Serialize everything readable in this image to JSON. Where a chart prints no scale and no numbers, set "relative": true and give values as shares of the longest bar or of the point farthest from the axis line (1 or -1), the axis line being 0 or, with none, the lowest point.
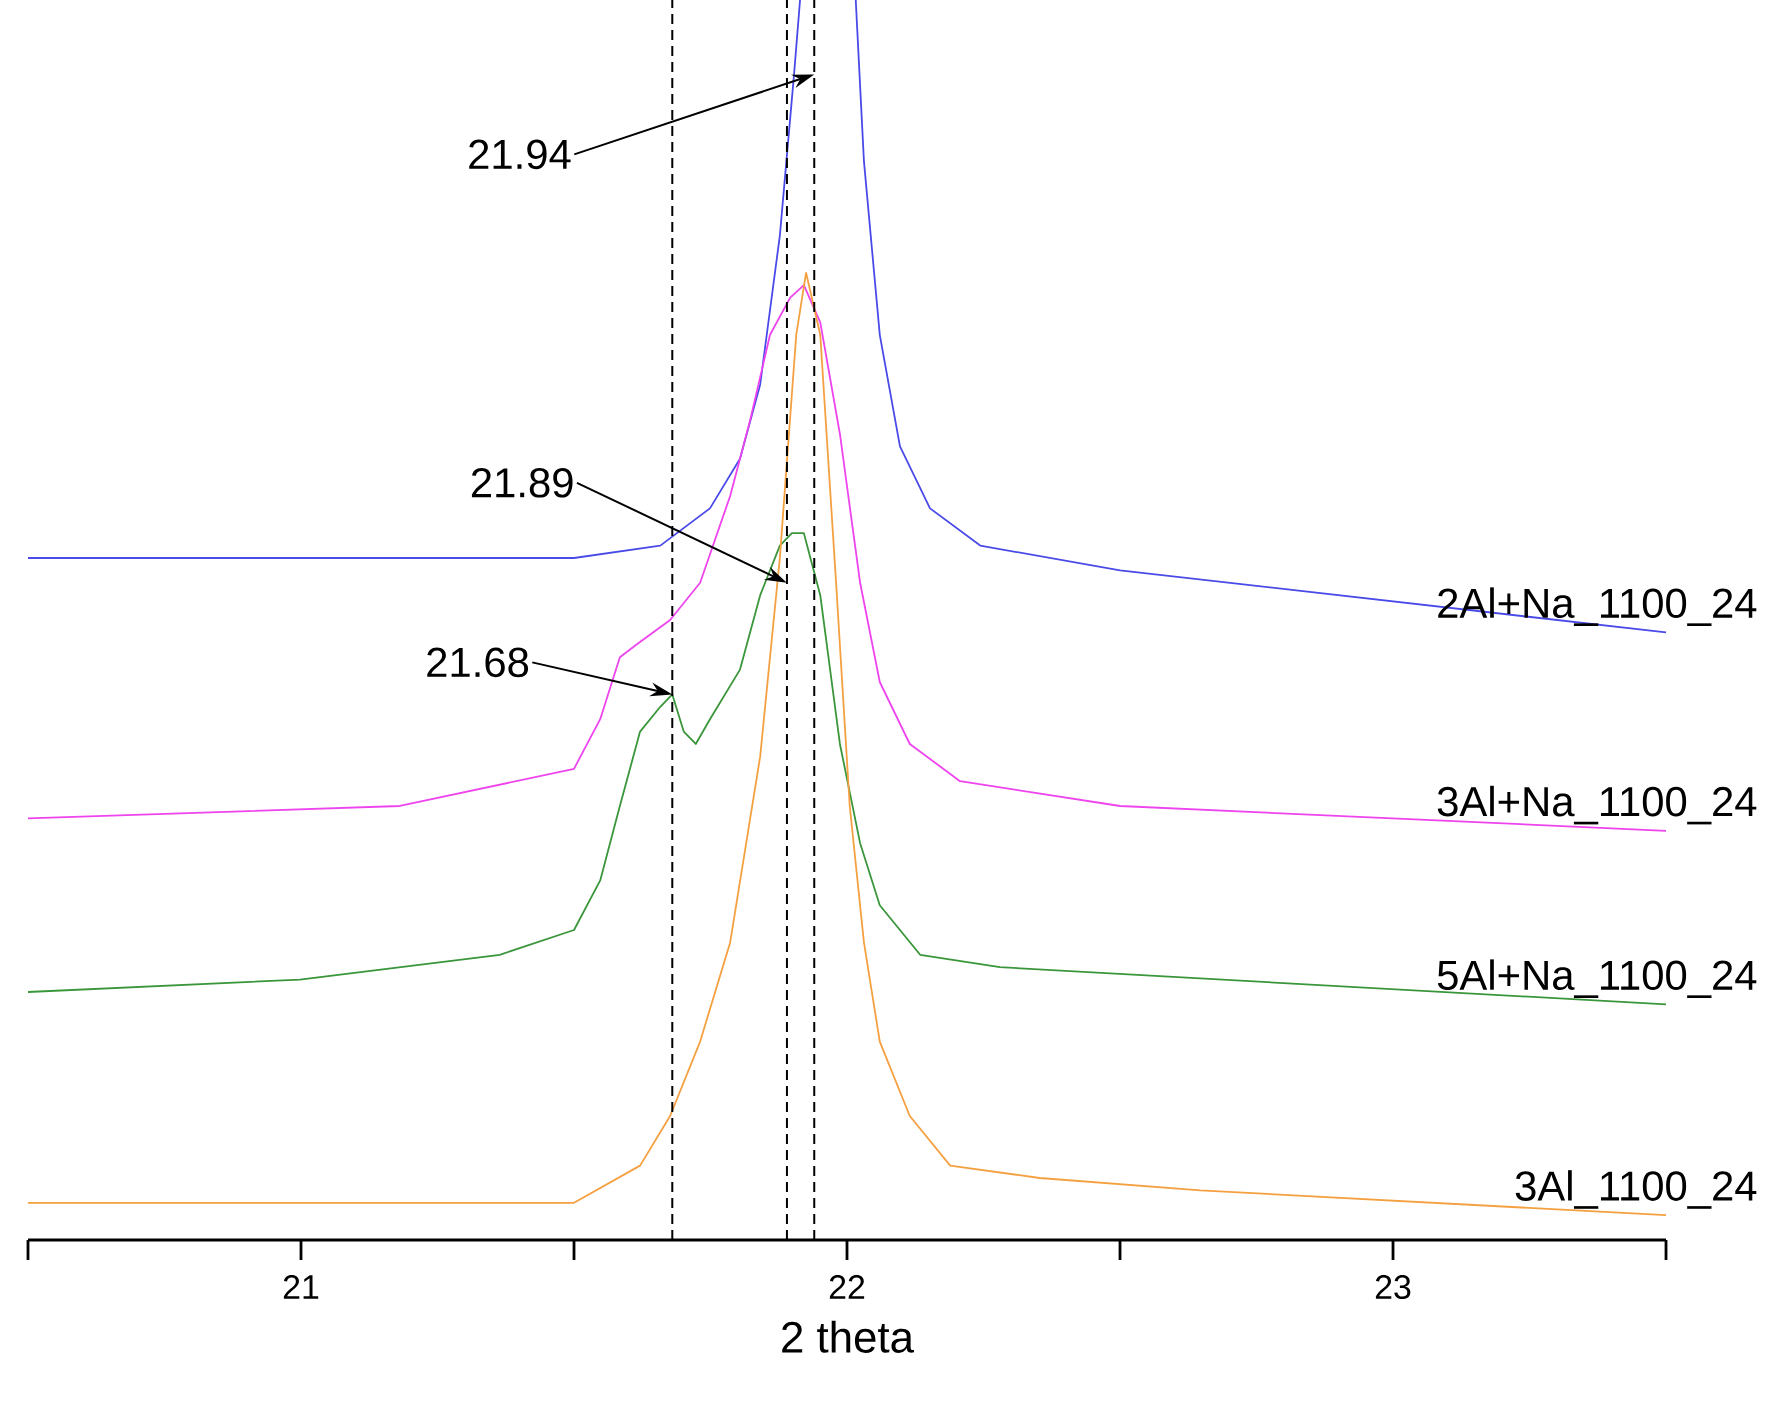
{
  "chart_data": {
    "type": "line",
    "relative": true,
    "xlabel": "2 theta",
    "xlim": [
      20.5,
      23.5
    ],
    "xticks": [
      {
        "value": 20.5,
        "label": null
      },
      21,
      {
        "value": 21.5,
        "label": null
      },
      22,
      {
        "value": 22.5,
        "label": null
      },
      23,
      {
        "value": 23.5,
        "label": null
      }
    ],
    "series": [
      {
        "name": "2Al+Na_1100_24",
        "color": "#4a4ae8",
        "x": [
          20.5,
          21.5,
          21.658,
          21.749,
          21.804,
          21.841,
          21.877,
          21.903,
          21.914,
          21.96,
          22.016,
          22.031,
          22.06,
          22.097,
          22.152,
          22.244,
          22.5,
          23.5
        ],
        "values": [
          0.55,
          0.55,
          0.56,
          0.59,
          0.63,
          0.69,
          0.81,
          0.94,
          1,
          null,
          1,
          0.87,
          0.73,
          0.64,
          0.59,
          0.56,
          0.54,
          0.49
        ]
      },
      {
        "name": "3Al+Na_1100_24",
        "color": "#ee44ee",
        "x": [
          20.5,
          21.181,
          21.5,
          21.548,
          21.584,
          21.614,
          21.676,
          21.731,
          21.786,
          21.822,
          21.859,
          21.896,
          21.921,
          21.951,
          21.987,
          22.024,
          22.06,
          22.115,
          22.207,
          22.5,
          23.5
        ],
        "values": [
          0.34,
          0.35,
          0.38,
          0.42,
          0.47,
          0.48,
          0.5,
          0.53,
          0.6,
          0.66,
          0.73,
          0.76,
          0.77,
          0.74,
          0.65,
          0.53,
          0.45,
          0.4,
          0.37,
          0.35,
          0.33
        ]
      },
      {
        "name": "5Al+Na_1100_24",
        "color": "#3a963a",
        "x": [
          20.5,
          20.998,
          21.364,
          21.5,
          21.548,
          21.584,
          21.621,
          21.658,
          21.68,
          21.701,
          21.723,
          21.749,
          21.804,
          21.841,
          21.877,
          21.899,
          21.921,
          21.951,
          21.987,
          22.024,
          22.06,
          22.134,
          22.28,
          23.5
        ],
        "values": [
          0.2,
          0.21,
          0.23,
          0.25,
          0.29,
          0.35,
          0.41,
          0.43,
          0.44,
          0.41,
          0.4,
          0.42,
          0.46,
          0.52,
          0.56,
          0.57,
          0.57,
          0.52,
          0.4,
          0.32,
          0.27,
          0.23,
          0.22,
          0.19
        ]
      },
      {
        "name": "3Al_1100_24",
        "color": "#f5a040",
        "x": [
          20.5,
          21.5,
          21.621,
          21.676,
          21.731,
          21.786,
          21.841,
          21.877,
          21.907,
          21.925,
          21.951,
          21.98,
          22.005,
          22.031,
          22.06,
          22.115,
          22.189,
          22.353,
          22.647,
          23.5
        ],
        "values": [
          0.03,
          0.03,
          0.06,
          0.1,
          0.16,
          0.24,
          0.39,
          0.55,
          0.73,
          0.78,
          0.73,
          0.53,
          0.35,
          0.24,
          0.16,
          0.1,
          0.06,
          0.05,
          0.04,
          0.02
        ]
      }
    ],
    "ref_lines": [
      {
        "axis": "x",
        "value": 21.94,
        "color": "#000000",
        "line_style": "dashed"
      },
      {
        "axis": "x",
        "value": 21.89,
        "color": "#000000",
        "line_style": "dashed"
      },
      {
        "axis": "x",
        "value": 21.68,
        "color": "#000000",
        "line_style": "dashed"
      }
    ],
    "annotations": [
      {
        "text": "21.94",
        "x": 21.94,
        "y": 0.94
      },
      {
        "text": "21.89",
        "x": 21.89,
        "y": 0.53
      },
      {
        "text": "21.68",
        "x": 21.68,
        "y": 0.44
      }
    ],
    "grid": false,
    "marker": "none",
    "line_style": "solid"
  }
}
